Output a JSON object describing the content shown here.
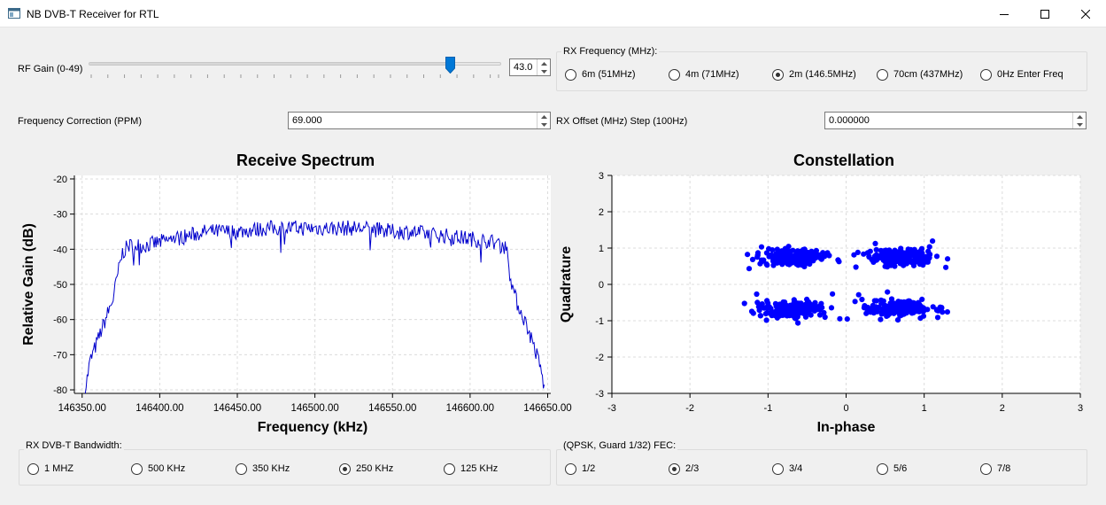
{
  "window": {
    "title": "NB DVB-T Receiver for RTL"
  },
  "rf_gain": {
    "label": "RF Gain (0-49)",
    "value": "43.0",
    "level": 43,
    "min": 0,
    "max": 49
  },
  "rx_frequency": {
    "title": "RX Frequency (MHz):",
    "options": [
      {
        "label": "6m (51MHz)",
        "selected": false
      },
      {
        "label": "4m (71MHz)",
        "selected": false
      },
      {
        "label": "2m (146.5MHz)",
        "selected": true
      },
      {
        "label": "70cm (437MHz)",
        "selected": false
      },
      {
        "label": "0Hz Enter Freq",
        "selected": false
      }
    ]
  },
  "freq_correction": {
    "label": "Frequency Correction (PPM)",
    "value": "69.000"
  },
  "rx_offset": {
    "label": "RX Offset (MHz) Step (100Hz)",
    "value": "0.000000"
  },
  "spectrum": {
    "title": "Receive Spectrum",
    "xlabel": "Frequency (kHz)",
    "ylabel": "Relative Gain (dB)",
    "xticks": [
      "146350.00",
      "146400.00",
      "146450.00",
      "146500.00",
      "146550.00",
      "146600.00",
      "146650.00"
    ],
    "yticks": [
      "-20",
      "-30",
      "-40",
      "-50",
      "-60",
      "-70",
      "-80"
    ]
  },
  "constellation": {
    "title": "Constellation",
    "xlabel": "In-phase",
    "ylabel": "Quadrature",
    "xticks": [
      "-3",
      "-2",
      "-1",
      "0",
      "1",
      "2",
      "3"
    ],
    "yticks": [
      "3",
      "2",
      "1",
      "0",
      "-1",
      "-2",
      "-3"
    ]
  },
  "bandwidth": {
    "title": "RX DVB-T Bandwidth:",
    "options": [
      {
        "label": "1 MHZ",
        "selected": false
      },
      {
        "label": "500 KHz",
        "selected": false
      },
      {
        "label": "350 KHz",
        "selected": false
      },
      {
        "label": "250 KHz",
        "selected": true
      },
      {
        "label": "125 KHz",
        "selected": false
      }
    ]
  },
  "fec": {
    "title": "(QPSK, Guard 1/32) FEC:",
    "options": [
      {
        "label": "1/2",
        "selected": false
      },
      {
        "label": "2/3",
        "selected": true
      },
      {
        "label": "3/4",
        "selected": false
      },
      {
        "label": "5/6",
        "selected": false
      },
      {
        "label": "7/8",
        "selected": false
      }
    ]
  },
  "chart_data": [
    {
      "type": "line",
      "title": "Receive Spectrum",
      "xlabel": "Frequency (kHz)",
      "ylabel": "Relative Gain (dB)",
      "xlim": [
        146345,
        146652
      ],
      "ylim": [
        -81,
        -19
      ],
      "grid": true,
      "series": [
        {
          "color": "#0000cc",
          "x": [
            146352,
            146355,
            146360,
            146365,
            146370,
            146373,
            146376,
            146380,
            146390,
            146400,
            146410,
            146420,
            146430,
            146440,
            146450,
            146460,
            146470,
            146480,
            146490,
            146500,
            146510,
            146520,
            146530,
            146540,
            146550,
            146560,
            146570,
            146580,
            146590,
            146600,
            146610,
            146620,
            146624,
            146627,
            146630,
            146635,
            146640,
            146645,
            146648
          ],
          "y": [
            -80,
            -72,
            -66,
            -60,
            -54,
            -47,
            -41,
            -39,
            -39,
            -38,
            -37,
            -36,
            -35,
            -35,
            -35,
            -34.5,
            -34,
            -34,
            -34,
            -34,
            -34,
            -34,
            -34,
            -34.5,
            -35,
            -35,
            -35.5,
            -36,
            -36.5,
            -37,
            -37.5,
            -38.5,
            -40,
            -50,
            -55,
            -60,
            -66,
            -73,
            -80
          ]
        }
      ]
    },
    {
      "type": "scatter",
      "title": "Constellation",
      "xlabel": "In-phase",
      "ylabel": "Quadrature",
      "xlim": [
        -3,
        3
      ],
      "ylim": [
        -3,
        3
      ],
      "grid": true,
      "series": [
        {
          "color": "#0000ff",
          "centers": [
            [
              -0.7,
              0.75
            ],
            [
              0.7,
              0.75
            ],
            [
              -0.7,
              -0.7
            ],
            [
              0.7,
              -0.65
            ]
          ]
        }
      ]
    }
  ]
}
